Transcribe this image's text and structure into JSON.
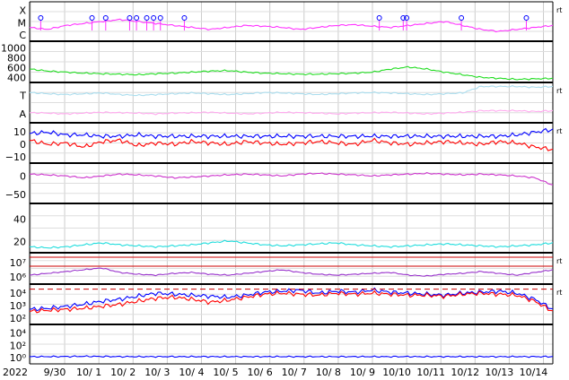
{
  "chart_data": {
    "type": "line",
    "title": "",
    "year_label": "2022",
    "x_tick_labels": [
      "9/30",
      "10/ 1",
      "10/ 2",
      "10/ 3",
      "10/ 4",
      "10/ 5",
      "10/ 6",
      "10/ 7",
      "10/ 8",
      "10/ 9",
      "10/10",
      "10/11",
      "10/12",
      "10/13",
      "10/14"
    ],
    "grid": true,
    "colors": {
      "xray": "#ff33ff",
      "wind_speed": "#22dd22",
      "temp": "#aaddee",
      "density": "#ffaaee",
      "bt": "#0000ff",
      "bz": "#ff0000",
      "phi": "#cc33cc",
      "kp_cyan": "#22dddd",
      "electron": "#9933cc",
      "proton_high": "#0000ff",
      "proton_low": "#ff0000",
      "threshold": "#cc0000"
    },
    "panels": [
      {
        "id": "xray",
        "tick_labels": [
          "X",
          "M",
          "C"
        ],
        "rt": "rt",
        "flare_markers_day": [
          0.3,
          1.8,
          2.2,
          2.9,
          3.1,
          3.4,
          3.6,
          3.8,
          4.5,
          10.2,
          10.9,
          11.0,
          12.6,
          14.5
        ],
        "series": [
          {
            "values": [
              0.35,
              0.3,
              0.4,
              0.45,
              0.5,
              0.55,
              0.5,
              0.45,
              0.4,
              0.35,
              0.3,
              0.35,
              0.4,
              0.38,
              0.35,
              0.3,
              0.35,
              0.4,
              0.42,
              0.38,
              0.35,
              0.4,
              0.45,
              0.5,
              0.4,
              0.3,
              0.25,
              0.3,
              0.35,
              0.4
            ]
          }
        ]
      },
      {
        "id": "wind",
        "tick_labels": [
          "1000",
          "800",
          "600",
          "400"
        ],
        "ylim": [
          300,
          1100
        ],
        "series": [
          {
            "values": [
              560,
              520,
              500,
              480,
              470,
              460,
              450,
              470,
              480,
              500,
              520,
              530,
              500,
              480,
              470,
              460,
              460,
              470,
              480,
              500,
              560,
              600,
              560,
              500,
              450,
              400,
              380,
              360,
              370,
              380
            ]
          }
        ]
      },
      {
        "id": "temp-density",
        "tick_labels": [
          "T",
          "A"
        ],
        "rt": "rt",
        "series": [
          {
            "values": [
              0.75,
              0.72,
              0.7,
              0.72,
              0.74,
              0.7,
              0.68,
              0.7,
              0.72,
              0.74,
              0.72,
              0.7,
              0.72,
              0.75,
              0.74,
              0.72,
              0.7,
              0.72,
              0.74,
              0.75,
              0.74,
              0.72,
              0.7,
              0.72,
              0.74,
              0.9,
              0.9,
              0.9,
              0.88,
              0.9
            ]
          },
          {
            "values": [
              0.25,
              0.24,
              0.22,
              0.24,
              0.26,
              0.25,
              0.24,
              0.22,
              0.24,
              0.25,
              0.26,
              0.24,
              0.22,
              0.24,
              0.26,
              0.25,
              0.24,
              0.22,
              0.24,
              0.25,
              0.26,
              0.24,
              0.22,
              0.24,
              0.26,
              0.3,
              0.3,
              0.3,
              0.28,
              0.3
            ]
          }
        ]
      },
      {
        "id": "imf",
        "tick_labels": [
          "10",
          "0",
          "−10"
        ],
        "rt": "rt",
        "ylim": [
          -15,
          15
        ],
        "series": [
          {
            "values": [
              7,
              8,
              6,
              6,
              5,
              5,
              6,
              5,
              5,
              5,
              5,
              5,
              5,
              5,
              5,
              5,
              5,
              5,
              5,
              5,
              5,
              5,
              5,
              5,
              5,
              5,
              5,
              6,
              8,
              10
            ]
          },
          {
            "values": [
              2,
              -1,
              0,
              -3,
              1,
              2,
              -2,
              0,
              -1,
              1,
              0,
              -1,
              1,
              0,
              -1,
              0,
              1,
              0,
              -1,
              2,
              0,
              -1,
              0,
              1,
              0,
              -1,
              1,
              0,
              -3,
              -5
            ]
          }
        ]
      },
      {
        "id": "phi",
        "tick_labels": [
          "0",
          "−50"
        ],
        "ylim": [
          -90,
          20
        ],
        "series": [
          {
            "values": [
              -10,
              -12,
              -15,
              -20,
              -15,
              -10,
              -12,
              -15,
              -20,
              -18,
              -15,
              -12,
              -10,
              -12,
              -15,
              -10,
              -8,
              -10,
              -12,
              -15,
              -12,
              -10,
              -8,
              -10,
              -12,
              -10,
              -12,
              -15,
              -20,
              -40
            ]
          }
        ]
      },
      {
        "id": "cyan",
        "tick_labels": [
          "40",
          "20"
        ],
        "ylim": [
          0,
          50
        ],
        "series": [
          {
            "values": [
              6,
              5,
              6,
              8,
              10,
              8,
              7,
              6,
              7,
              8,
              10,
              12,
              10,
              8,
              7,
              8,
              9,
              10,
              8,
              7,
              6,
              7,
              8,
              9,
              8,
              7,
              6,
              7,
              8,
              10
            ]
          }
        ]
      },
      {
        "id": "electron",
        "tick_labels": [
          "10⁷",
          "10⁶"
        ],
        "rt": "rt",
        "ylim": [
          4,
          7.5
        ],
        "threshold_log": [
          7,
          6
        ],
        "series": [
          {
            "values": [
              5.0,
              5.2,
              5.4,
              5.6,
              5.8,
              5.3,
              5.1,
              5.0,
              5.2,
              5.3,
              5.1,
              5.0,
              5.2,
              5.4,
              5.6,
              5.3,
              5.1,
              5.0,
              5.1,
              5.2,
              5.3,
              5.0,
              4.9,
              5.1,
              5.2,
              5.4,
              5.2,
              5.0,
              5.3,
              5.6
            ]
          }
        ]
      },
      {
        "id": "proton",
        "tick_labels": [
          "10⁴",
          "10³",
          "10²"
        ],
        "rt": "rt",
        "ylim": [
          0.5,
          4.5
        ],
        "threshold_log": [
          4
        ],
        "series": [
          {
            "values": [
              2.0,
              2.1,
              2.3,
              2.5,
              2.8,
              3.0,
              3.3,
              3.6,
              3.5,
              3.4,
              3.3,
              3.2,
              3.4,
              3.7,
              3.8,
              3.9,
              3.6,
              3.8,
              3.7,
              3.9,
              3.7,
              3.6,
              3.5,
              3.4,
              3.6,
              3.7,
              3.8,
              3.6,
              3.0,
              2.0
            ]
          },
          {
            "values": [
              1.8,
              1.9,
              2.0,
              2.1,
              2.3,
              2.5,
              2.8,
              3.1,
              3.2,
              3.0,
              2.7,
              2.9,
              3.2,
              3.5,
              3.6,
              3.5,
              3.4,
              3.6,
              3.5,
              3.6,
              3.5,
              3.4,
              3.4,
              3.3,
              3.5,
              3.6,
              3.5,
              3.4,
              2.8,
              1.8
            ]
          }
        ]
      },
      {
        "id": "neutron",
        "tick_labels": [
          "10⁴",
          "10²",
          "10⁰"
        ],
        "ylim": [
          -1,
          5
        ],
        "series": [
          {
            "values": [
              0.1,
              0.1,
              0.12,
              0.15,
              0.13,
              0.1,
              0.1,
              0.1,
              0.1,
              0.1,
              0.1,
              0.1,
              0.1,
              0.1,
              0.1,
              0.1,
              0.1,
              0.1,
              0.1,
              0.1,
              0.1,
              0.1,
              0.1,
              0.1,
              0.1,
              0.1,
              0.1,
              0.1,
              0.1,
              0.1
            ]
          }
        ]
      }
    ]
  }
}
